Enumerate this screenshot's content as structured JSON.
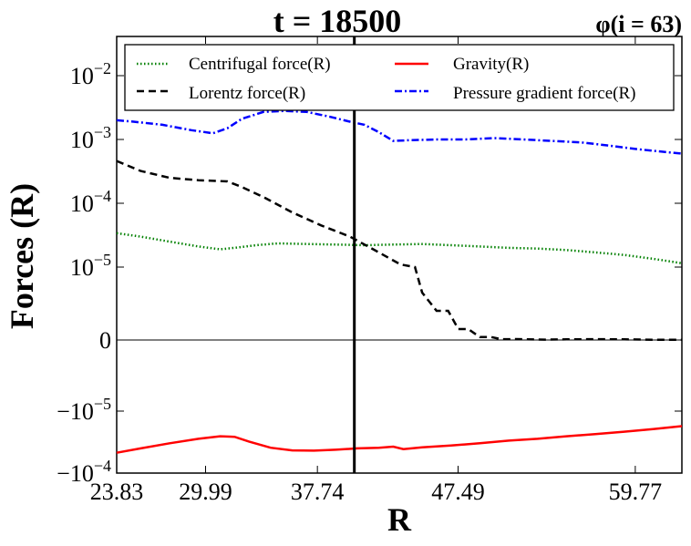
{
  "chart_data": {
    "type": "line",
    "title": "t = 18500",
    "subtitle": "φ(i = 63)",
    "xlabel": "R",
    "ylabel": "Forces (R)",
    "xlim": [
      23.83,
      63.0
    ],
    "y_scale": "symlog",
    "x_ticks": [
      {
        "value": 23.83,
        "label": "23.83"
      },
      {
        "value": 29.99,
        "label": "29.99"
      },
      {
        "value": 37.74,
        "label": "37.74"
      },
      {
        "value": 47.49,
        "label": "47.49"
      },
      {
        "value": 59.77,
        "label": "59.77"
      }
    ],
    "y_ticks": [
      {
        "base": "10",
        "exp": "−2",
        "sign": "",
        "label": "10^−2"
      },
      {
        "base": "10",
        "exp": "−3",
        "sign": "",
        "label": "10^−3"
      },
      {
        "base": "10",
        "exp": "−4",
        "sign": "",
        "label": "10^−4"
      },
      {
        "base": "10",
        "exp": "−5",
        "sign": "",
        "label": "10^−5"
      },
      {
        "base": "0",
        "exp": "",
        "sign": "",
        "label": "0"
      },
      {
        "base": "10",
        "exp": "−5",
        "sign": "−",
        "label": "−10^−5"
      },
      {
        "base": "10",
        "exp": "−4",
        "sign": "−",
        "label": "−10^−4"
      }
    ],
    "vline_x": 40.3,
    "series": [
      {
        "name": "Centrifugal force(R)",
        "color": "#008000",
        "style": "dotted",
        "x": [
          23.83,
          25.5,
          27.5,
          29.5,
          31.0,
          32.0,
          33.5,
          35.0,
          37.0,
          39.0,
          41.0,
          43.0,
          45.0,
          47.0,
          49.0,
          51.0,
          53.0,
          55.0,
          57.0,
          59.0,
          61.0,
          63.0
        ],
        "values": [
          3.4e-05,
          3e-05,
          2.5e-05,
          2.1e-05,
          1.9e-05,
          2e-05,
          2.2e-05,
          2.35e-05,
          2.3e-05,
          2.25e-05,
          2.2e-05,
          2.25e-05,
          2.3e-05,
          2.2e-05,
          2.1e-05,
          2e-05,
          1.95e-05,
          1.85e-05,
          1.7e-05,
          1.55e-05,
          1.35e-05,
          1.15e-05
        ]
      },
      {
        "name": "Lorentz force(R)",
        "color": "#000000",
        "style": "dashed",
        "x": [
          23.83,
          25.5,
          27.5,
          29.5,
          31.5,
          32.5,
          34.0,
          36.0,
          38.0,
          40.0,
          42.0,
          43.5,
          44.5,
          45.0,
          46.0,
          46.8,
          47.5,
          48.2,
          49.0,
          49.8,
          50.5,
          51.5,
          53.5,
          55.0,
          57.0,
          59.0,
          61.0,
          63.0
        ],
        "values": [
          0.00046,
          0.00032,
          0.00025,
          0.00023,
          0.00022,
          0.00018,
          0.000125,
          7.2e-05,
          4.5e-05,
          3e-05,
          1.7e-05,
          1.1e-05,
          1e-05,
          6.5e-06,
          4e-06,
          4e-06,
          1.5e-06,
          1.5e-06,
          4e-07,
          4e-07,
          1e-07,
          1.2e-07,
          5e-08,
          9e-08,
          1.1e-07,
          9e-08,
          4e-08,
          3e-08
        ]
      },
      {
        "name": "Gravity(R)",
        "color": "#ff0000",
        "style": "solid",
        "x": [
          23.83,
          25.5,
          27.5,
          29.5,
          31.0,
          32.0,
          33.0,
          34.5,
          36.0,
          37.5,
          39.0,
          40.5,
          42.0,
          43.0,
          43.7,
          45.0,
          47.0,
          49.0,
          51.0,
          53.0,
          55.0,
          57.0,
          59.0,
          61.0,
          63.0
        ],
        "values": [
          -4.7e-05,
          -4e-05,
          -3.3e-05,
          -2.8e-05,
          -2.55e-05,
          -2.6e-05,
          -3.1e-05,
          -3.9e-05,
          -4.3e-05,
          -4.35e-05,
          -4.2e-05,
          -4e-05,
          -3.9e-05,
          -3.75e-05,
          -4.1e-05,
          -3.85e-05,
          -3.6e-05,
          -3.3e-05,
          -3e-05,
          -2.8e-05,
          -2.55e-05,
          -2.35e-05,
          -2.15e-05,
          -1.95e-05,
          -1.75e-05
        ]
      },
      {
        "name": "Pressure gradient force(R)",
        "color": "#0000ff",
        "style": "dashdot",
        "x": [
          23.83,
          25.0,
          27.0,
          29.0,
          30.5,
          31.5,
          32.5,
          34.0,
          35.5,
          37.0,
          38.5,
          40.0,
          41.0,
          42.0,
          43.0,
          44.0,
          46.0,
          48.0,
          50.0,
          52.0,
          54.0,
          56.0,
          58.0,
          60.0,
          62.0,
          63.0
        ],
        "values": [
          0.002,
          0.0019,
          0.0017,
          0.0014,
          0.00125,
          0.0015,
          0.0021,
          0.0027,
          0.0028,
          0.0027,
          0.0023,
          0.0019,
          0.0017,
          0.0013,
          0.00095,
          0.00097,
          0.001,
          0.001,
          0.00105,
          0.001,
          0.00095,
          0.0009,
          0.0008,
          0.0007,
          0.00063,
          0.0006
        ]
      }
    ],
    "legend_position": "top"
  }
}
